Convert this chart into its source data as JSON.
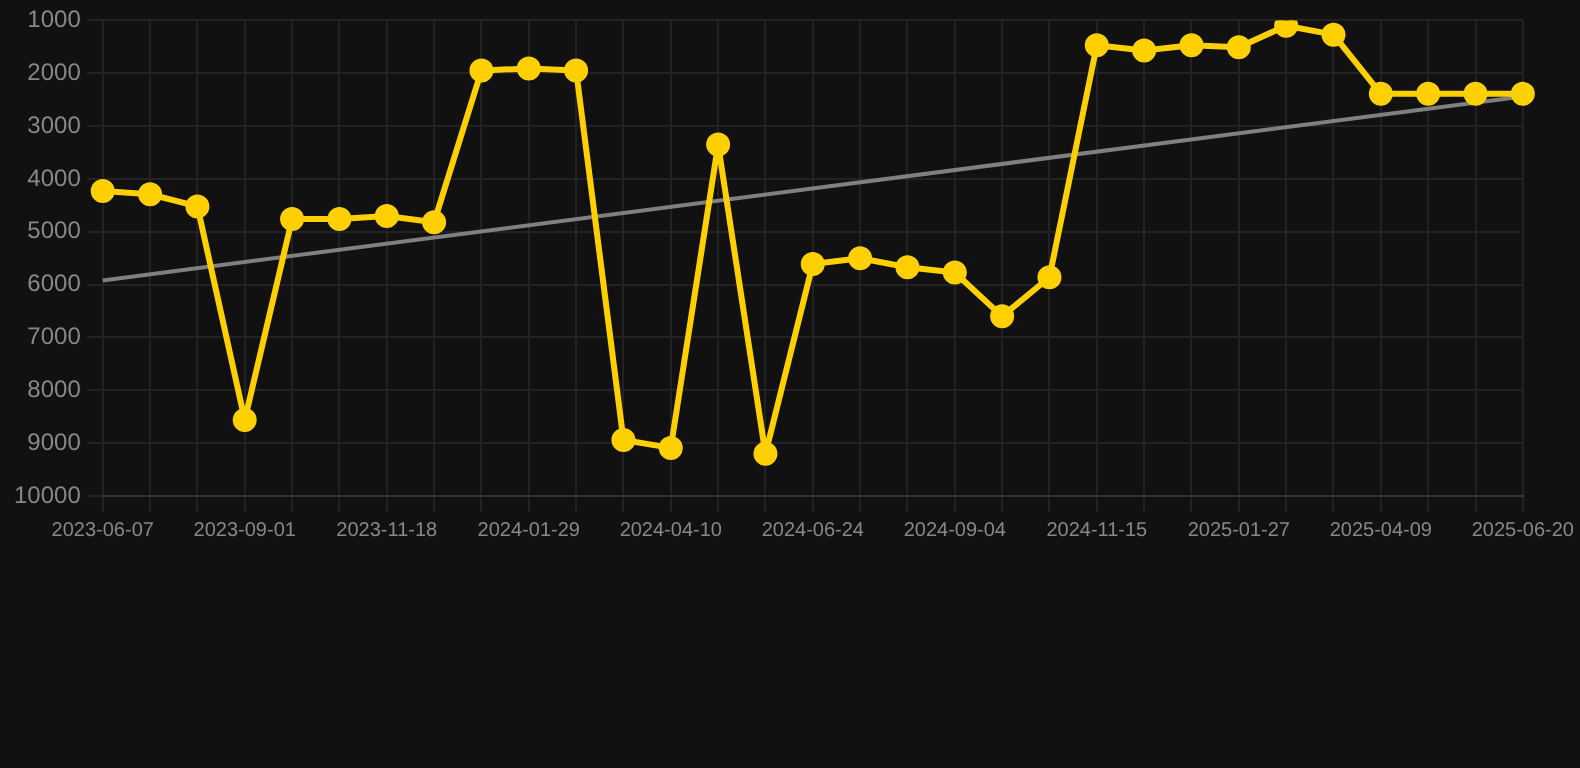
{
  "chart_data": {
    "type": "line",
    "categories": [
      "2023-06-07",
      null,
      null,
      "2023-09-01",
      null,
      null,
      "2023-11-18",
      null,
      null,
      "2024-01-29",
      null,
      null,
      "2024-04-10",
      null,
      null,
      "2024-06-24",
      null,
      null,
      "2024-09-04",
      null,
      null,
      "2024-11-15",
      null,
      null,
      "2025-01-27",
      null,
      null,
      "2025-04-09",
      null,
      null,
      "2025-06-20"
    ],
    "series": [
      {
        "color": "#ffd000",
        "marker": "circle",
        "values": [
          4230,
          4290,
          4520,
          8560,
          4760,
          4760,
          4700,
          4820,
          1950,
          1910,
          1950,
          8940,
          9090,
          3350,
          9200,
          5610,
          5500,
          5670,
          5770,
          6600,
          5860,
          1470,
          1570,
          1470,
          1510,
          1100,
          1270,
          2390,
          2390,
          2390,
          2390
        ]
      },
      {
        "color": "#808080",
        "marker": "none",
        "values": [
          5920,
          null,
          null,
          null,
          null,
          null,
          null,
          null,
          null,
          null,
          null,
          null,
          null,
          null,
          null,
          null,
          null,
          null,
          null,
          null,
          null,
          null,
          null,
          null,
          null,
          null,
          null,
          null,
          null,
          null,
          2440
        ]
      }
    ],
    "ylim": [
      10000,
      1000
    ],
    "yticks": [
      1000,
      2000,
      3000,
      4000,
      5000,
      6000,
      7000,
      8000,
      9000,
      10000
    ],
    "grid": true,
    "legend": false
  }
}
